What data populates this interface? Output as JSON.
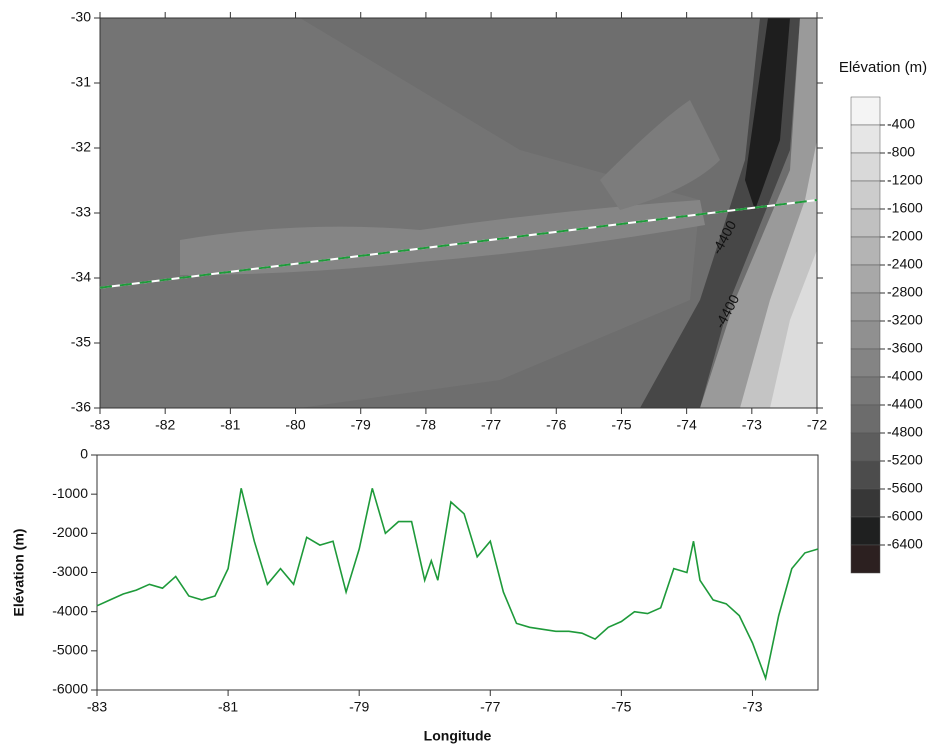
{
  "chart_data": [
    {
      "type": "contour",
      "xlim": [
        -83,
        -72
      ],
      "ylim": [
        -36,
        -30
      ],
      "xticks": [
        -83,
        -82,
        -81,
        -80,
        -79,
        -78,
        -77,
        -76,
        -75,
        -74,
        -73,
        -72
      ],
      "yticks": [
        -36,
        -35,
        -34,
        -33,
        -32,
        -31,
        -30
      ],
      "annotations": [
        "-4400",
        "-4400"
      ],
      "profile": {
        "x": [
          -83,
          -72
        ],
        "y": [
          -34.15,
          -32.8
        ],
        "color": "#1e9a3a"
      },
      "colorbar": {
        "title": "Elévation (m)",
        "levels": [
          -400,
          -800,
          -1200,
          -1600,
          -2000,
          -2400,
          -2800,
          -3200,
          -3600,
          -4000,
          -4400,
          -4800,
          -5200,
          -5600,
          -6000,
          -6400
        ],
        "colors": [
          "#f4f4f4",
          "#e6e6e6",
          "#d9d9d9",
          "#cccccc",
          "#c0c0c0",
          "#b4b4b4",
          "#a8a8a8",
          "#9c9c9c",
          "#909090",
          "#848484",
          "#787878",
          "#6c6c6c",
          "#5d5d5d",
          "#4c4c4c",
          "#373737",
          "#1f2020",
          "#2c2020"
        ]
      }
    },
    {
      "type": "line",
      "x_label": "Longitude",
      "y_label": "Elévation (m)",
      "xlim": [
        -83,
        -72
      ],
      "ylim": [
        -6000,
        0
      ],
      "xticks": [
        -83,
        -81,
        -79,
        -77,
        -75,
        -73
      ],
      "yticks": [
        -6000,
        -5000,
        -4000,
        -3000,
        -2000,
        -1000,
        0
      ],
      "series": [
        {
          "color": "#1e9a3a",
          "x": [
            -83,
            -82.8,
            -82.6,
            -82.4,
            -82.2,
            -82,
            -81.8,
            -81.6,
            -81.4,
            -81.2,
            -81,
            -80.8,
            -80.6,
            -80.4,
            -80.2,
            -80,
            -79.8,
            -79.6,
            -79.4,
            -79.2,
            -79,
            -78.8,
            -78.6,
            -78.4,
            -78.2,
            -78,
            -77.9,
            -77.8,
            -77.6,
            -77.4,
            -77.2,
            -77,
            -76.8,
            -76.6,
            -76.4,
            -76.2,
            -76,
            -75.8,
            -75.6,
            -75.4,
            -75.2,
            -75,
            -74.8,
            -74.6,
            -74.4,
            -74.2,
            -74,
            -73.9,
            -73.8,
            -73.6,
            -73.4,
            -73.2,
            -73,
            -72.8,
            -72.6,
            -72.4,
            -72.2,
            -72
          ],
          "values": [
            -3850,
            -3700,
            -3550,
            -3450,
            -3300,
            -3400,
            -3100,
            -3600,
            -3700,
            -3600,
            -2900,
            -850,
            -2200,
            -3300,
            -2900,
            -3300,
            -2100,
            -2300,
            -2200,
            -3500,
            -2400,
            -850,
            -2000,
            -1700,
            -1700,
            -3200,
            -2700,
            -3200,
            -1200,
            -1500,
            -2600,
            -2200,
            -3500,
            -4300,
            -4400,
            -4450,
            -4500,
            -4500,
            -4550,
            -4700,
            -4400,
            -4250,
            -4000,
            -4050,
            -3900,
            -2900,
            -3000,
            -2200,
            -3200,
            -3700,
            -3800,
            -4100,
            -4800,
            -5700,
            -4100,
            -2900,
            -2500,
            -2400
          ]
        }
      ]
    }
  ]
}
